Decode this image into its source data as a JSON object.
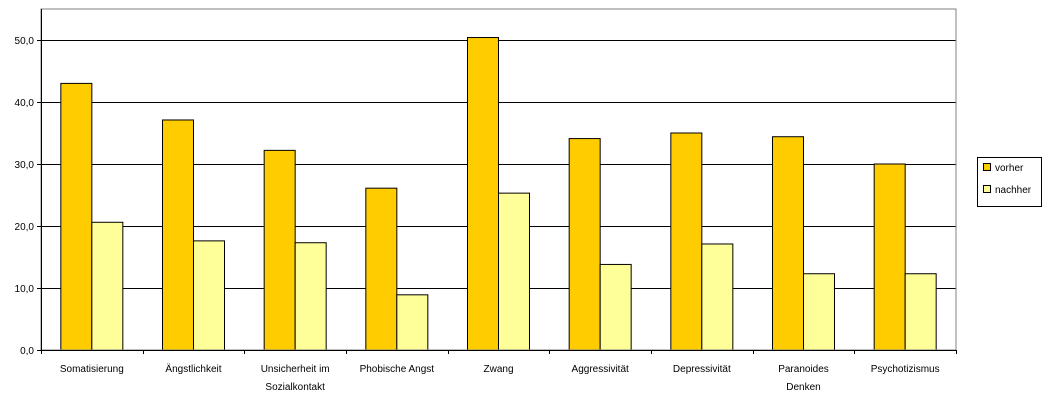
{
  "chart_data": {
    "type": "bar",
    "categories": [
      [
        "Somatisierung"
      ],
      [
        "Ängstlichkeit"
      ],
      [
        "Unsicherheit im",
        "Sozialkontakt"
      ],
      [
        "Phobische Angst"
      ],
      [
        "Zwang"
      ],
      [
        "Aggressivität"
      ],
      [
        "Depressivität"
      ],
      [
        "Paranoides",
        "Denken"
      ],
      [
        "Psychotizismus"
      ]
    ],
    "series": [
      {
        "name": "vorher",
        "color": "#FFCC00",
        "values": [
          43.0,
          37.1,
          32.2,
          26.1,
          50.4,
          34.1,
          35.0,
          34.4,
          30.0
        ]
      },
      {
        "name": "nachher",
        "color": "#FFFF99",
        "values": [
          20.6,
          17.6,
          17.3,
          8.9,
          25.3,
          13.8,
          17.1,
          12.3,
          12.3
        ]
      }
    ],
    "y_ticks": [
      "0,0",
      "10,0",
      "20,0",
      "30,0",
      "40,0",
      "50,0"
    ],
    "ylim": [
      0,
      55
    ],
    "grid": true,
    "legend_position": "right",
    "title": "",
    "xlabel": "",
    "ylabel": ""
  }
}
